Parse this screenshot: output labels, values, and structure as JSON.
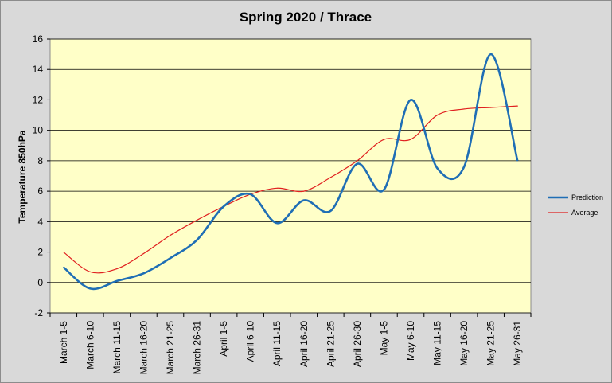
{
  "chart_data": {
    "type": "line",
    "title": "Spring 2020 / Thrace",
    "xlabel": "",
    "ylabel": "Temperature 850hPa",
    "ylim": [
      -2,
      16
    ],
    "yticks": [
      -2,
      0,
      2,
      4,
      6,
      8,
      10,
      12,
      14,
      16
    ],
    "grid": true,
    "legend_position": "right",
    "categories": [
      "March 1-5",
      "March 6-10",
      "March 11-15",
      "March 16-20",
      "March 21-25",
      "March 26-31",
      "April 1-5",
      "April 6-10",
      "April 11-15",
      "April 16-20",
      "April 21-25",
      "April 26-30",
      "May 1-5",
      "May 6-10",
      "May 11-15",
      "May 16-20",
      "May 21-25",
      "May 26-31"
    ],
    "series": [
      {
        "name": "Prediction",
        "color": "#1f6eb5",
        "values": [
          1.0,
          -0.4,
          0.1,
          0.6,
          1.6,
          2.8,
          5.0,
          5.8,
          3.9,
          5.4,
          4.7,
          7.8,
          6.1,
          12.0,
          7.5,
          7.6,
          15.0,
          8.0
        ]
      },
      {
        "name": "Average",
        "color": "#e02020",
        "values": [
          2.0,
          0.7,
          0.9,
          1.9,
          3.1,
          4.1,
          5.0,
          5.8,
          6.2,
          6.0,
          6.9,
          8.0,
          9.4,
          9.4,
          11.0,
          11.4,
          11.5,
          11.6
        ]
      }
    ]
  }
}
